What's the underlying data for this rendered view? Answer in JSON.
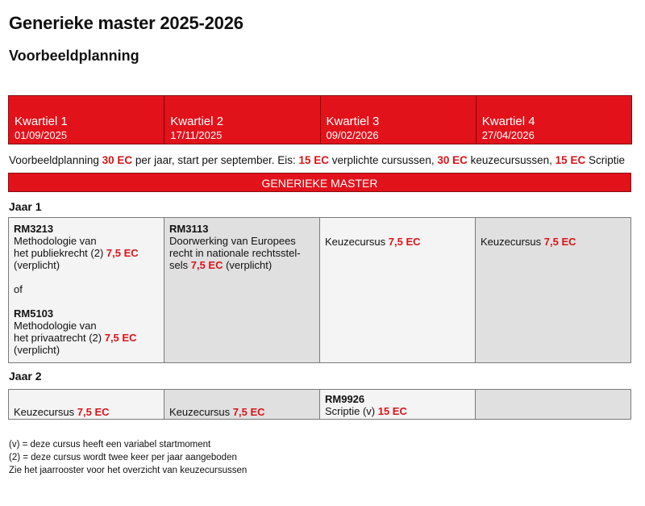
{
  "title": "Generieke master 2025-2026",
  "subtitle": "Voorbeeldplanning",
  "quarters": [
    {
      "label": "Kwartiel 1",
      "date": "01/09/2025"
    },
    {
      "label": "Kwartiel 2",
      "date": "17/11/2025"
    },
    {
      "label": "Kwartiel 3",
      "date": "09/02/2026"
    },
    {
      "label": "Kwartiel 4",
      "date": "27/04/2026"
    }
  ],
  "intro": {
    "t1": "Voorbeeldplanning ",
    "ec1": "30 EC",
    "t2": " per jaar, start per september. Eis: ",
    "ec2": "15 EC",
    "t3": " verplichte cursussen, ",
    "ec3": "30 EC",
    "t4": " keuzecursussen, ",
    "ec4": "15 EC",
    "t5": " Scriptie"
  },
  "banner": "GENERIEKE MASTER",
  "year1": {
    "label": "Jaar 1",
    "c1": {
      "code_a": "RM3213",
      "name_a1": "Methodologie van",
      "name_a2": "het publiekrecht (2) ",
      "ec_a": "7,5 EC",
      "req_a": "(verplicht)",
      "or": "of",
      "code_b": "RM5103",
      "name_b1": "Methodologie van",
      "name_b2": "het privaatrecht (2) ",
      "ec_b": "7,5 EC",
      "req_b": "(verplicht)"
    },
    "c2": {
      "code": "RM3113",
      "line1": "Doorwerking van Europees",
      "line2": "recht in nationale rechtsstel-",
      "line3": "sels ",
      "ec": "7,5 EC",
      "req": " (verplicht)"
    },
    "c3": {
      "name": "Keuzecursus ",
      "ec": "7,5 EC"
    },
    "c4": {
      "name": "Keuzecursus ",
      "ec": "7,5 EC"
    }
  },
  "year2": {
    "label": "Jaar 2",
    "c1": {
      "name": "Keuzecursus ",
      "ec": "7,5 EC"
    },
    "c2": {
      "name": "Keuzecursus ",
      "ec": "7,5 EC"
    },
    "c3": {
      "code": "RM9926",
      "name": "Scriptie (v) ",
      "ec": "15 EC"
    }
  },
  "notes": [
    "(v) = deze cursus heeft een variabel startmoment",
    "(2) = deze cursus wordt twee keer per jaar aangeboden",
    "Zie het jaarrooster voor het overzicht van keuzecursussen"
  ],
  "colors": {
    "accent_red": "#e2121b",
    "ec_red": "#d7141a",
    "cell_light": "#f4f4f4",
    "cell_dark": "#e0e0e0"
  }
}
